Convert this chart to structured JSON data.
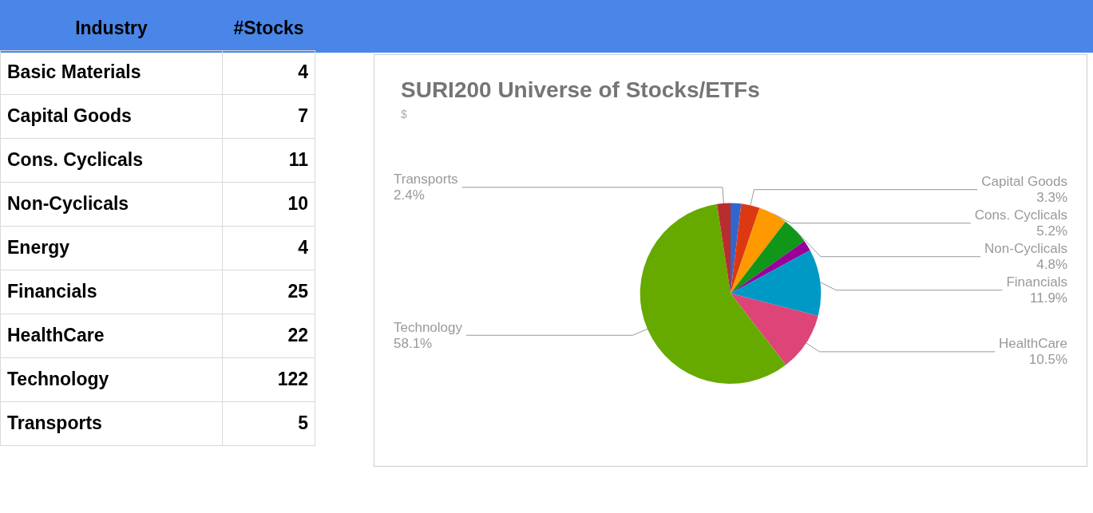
{
  "chart_data": [
    {
      "type": "other",
      "annotations": [
        "Industry",
        "#Stocks"
      ],
      "categories": [
        "Basic Materials",
        "Capital Goods",
        "Cons. Cyclicals",
        "Non-Cyclicals",
        "Energy",
        "Financials",
        "HealthCare",
        "Technology",
        "Transports"
      ],
      "values": [
        4,
        7,
        11,
        10,
        4,
        25,
        22,
        122,
        5
      ],
      "data_labels": true
    },
    {
      "type": "pie",
      "title": "SURI200 Universe of Stocks/ETFs",
      "subtitle": "$",
      "categories": [
        null,
        "Capital Goods",
        "Cons. Cyclicals",
        "Non-Cyclicals",
        null,
        "Financials",
        "HealthCare",
        "Technology",
        "Transports"
      ],
      "values": [
        1.9,
        3.3,
        5.2,
        4.8,
        1.9,
        11.9,
        10.5,
        58.1,
        2.4
      ],
      "value_labels": [
        null,
        "3.3%",
        "5.2%",
        "4.8%",
        null,
        "11.9%",
        "10.5%",
        "58.1%",
        "2.4%"
      ],
      "colors": [
        "#3366cc",
        "#dc3912",
        "#ff9900",
        "#109618",
        "#990099",
        "#0099c6",
        "#dd4477",
        "#66aa00",
        "#b82e2e"
      ]
    }
  ]
}
